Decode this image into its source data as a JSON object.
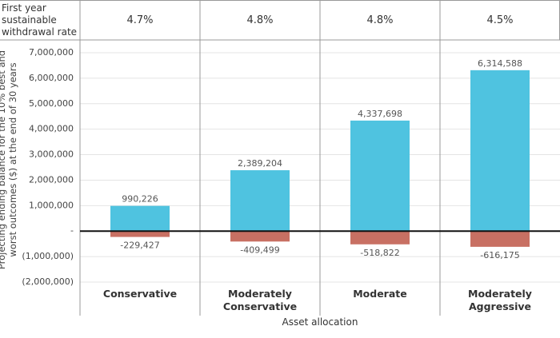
{
  "header_row": {
    "label": "First year sustainable withdrawal rate",
    "cells": [
      "4.7%",
      "4.8%",
      "4.8%",
      "4.5%"
    ]
  },
  "chart_data": {
    "type": "bar",
    "y_label": "Projecting ending balance for the 10% best and worst outcomes ($) at the end of 30 years",
    "x_label": "Asset allocation",
    "categories": [
      "Conservative",
      "Moderately Conservative",
      "Moderate",
      "Moderately Aggressive"
    ],
    "series": [
      {
        "color": "#4fc3e0",
        "values": [
          990226,
          2389204,
          4337698,
          6314588
        ],
        "value_labels": [
          "990,226",
          "2,389,204",
          "4,337,698",
          "6,314,588"
        ]
      },
      {
        "color": "#c87063",
        "values": [
          -229427,
          -409499,
          -518822,
          -616175
        ],
        "value_labels": [
          "-229,427",
          "-409,499",
          "-518,822",
          "-616,175"
        ]
      }
    ],
    "ylim": [
      -2000000,
      7000000
    ],
    "yticks": [
      {
        "value": -2000000,
        "label": "(2,000,000)"
      },
      {
        "value": -1000000,
        "label": "(1,000,000)"
      },
      {
        "value": 0,
        "label": "-"
      },
      {
        "value": 1000000,
        "label": "1,000,000"
      },
      {
        "value": 2000000,
        "label": "2,000,000"
      },
      {
        "value": 3000000,
        "label": "3,000,000"
      },
      {
        "value": 4000000,
        "label": "4,000,000"
      },
      {
        "value": 5000000,
        "label": "5,000,000"
      },
      {
        "value": 6000000,
        "label": "6,000,000"
      },
      {
        "value": 7000000,
        "label": "7,000,000"
      }
    ],
    "grid": true
  }
}
